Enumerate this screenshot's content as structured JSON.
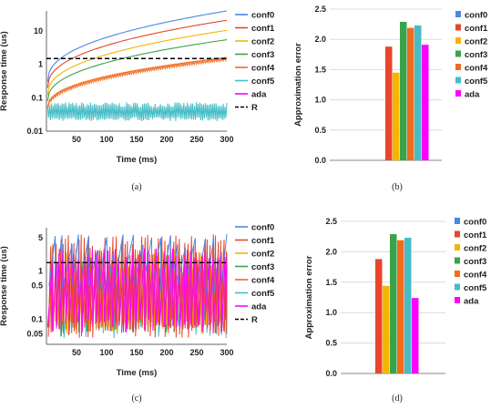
{
  "series_names": [
    "conf0",
    "conf1",
    "conf2",
    "conf3",
    "conf4",
    "conf5",
    "ada",
    "R"
  ],
  "colors": {
    "conf0": "#4a86e8",
    "conf1": "#e8452c",
    "conf2": "#f5b400",
    "conf3": "#3aa34a",
    "conf4": "#f26b1d",
    "conf5": "#46bdc6",
    "ada": "#ff00ff",
    "R": "#000000"
  },
  "chart_data": [
    {
      "panel_label": "(a)",
      "type": "line",
      "xlabel": "Time (ms)",
      "ylabel": "Response time (us)",
      "x_ticks": [
        50,
        100,
        150,
        200,
        250,
        300
      ],
      "y_ticks": [
        "0.01",
        "0.1",
        "1",
        "10"
      ],
      "xlim": [
        0,
        300
      ],
      "ylim": [
        0.01,
        40
      ],
      "log_y": true,
      "legend": [
        "conf0",
        "conf1",
        "conf2",
        "conf3",
        "conf4",
        "conf5",
        "ada",
        "R"
      ],
      "series": [
        {
          "name": "conf0",
          "start": 0.3,
          "end": 40
        },
        {
          "name": "conf1",
          "start": 0.2,
          "end": 21
        },
        {
          "name": "conf2",
          "start": 0.12,
          "end": 10.5
        },
        {
          "name": "conf3",
          "start": 0.08,
          "end": 5.5
        },
        {
          "name": "conf4",
          "start": 0.05,
          "end": 1.6
        },
        {
          "name": "conf5",
          "low": 0.02,
          "high": 0.07
        },
        {
          "name": "R",
          "value": 1.5
        }
      ]
    },
    {
      "panel_label": "(b)",
      "type": "bar",
      "ylabel": "Approximation error",
      "y_ticks": [
        "0.0",
        "0.5",
        "1.0",
        "1.5",
        "2.0",
        "2.5"
      ],
      "ylim": [
        0,
        2.5
      ],
      "categories": [
        "conf0",
        "conf1",
        "conf2",
        "conf3",
        "conf4",
        "conf5",
        "ada"
      ],
      "values": [
        null,
        1.88,
        1.45,
        2.29,
        2.19,
        2.23,
        1.91
      ],
      "legend": [
        "conf0",
        "conf1",
        "conf2",
        "conf3",
        "conf4",
        "conf5",
        "ada"
      ]
    },
    {
      "panel_label": "(c)",
      "type": "line",
      "xlabel": "Time (ms)",
      "ylabel": "Response time (us)",
      "x_ticks": [
        50,
        100,
        150,
        200,
        250,
        300
      ],
      "y_ticks": [
        "0.05",
        "0.1",
        "0.5",
        "1",
        "5"
      ],
      "xlim": [
        0,
        300
      ],
      "ylim": [
        0.03,
        8
      ],
      "log_y": true,
      "legend": [
        "conf0",
        "conf1",
        "conf2",
        "conf3",
        "conf4",
        "conf5",
        "ada",
        "R"
      ],
      "series": [
        {
          "name": "R",
          "value": 1.5
        }
      ]
    },
    {
      "panel_label": "(d)",
      "type": "bar",
      "ylabel": "Approximation error",
      "y_ticks": [
        "0.0",
        "0.5",
        "1.0",
        "1.5",
        "2.0",
        "2.5"
      ],
      "ylim": [
        0,
        2.5
      ],
      "categories": [
        "conf0",
        "conf1",
        "conf2",
        "conf3",
        "conf4",
        "conf5",
        "ada"
      ],
      "values": [
        null,
        1.88,
        1.44,
        2.29,
        2.19,
        2.23,
        1.24
      ],
      "legend": [
        "conf0",
        "conf1",
        "conf2",
        "conf3",
        "conf4",
        "conf5",
        "ada"
      ]
    }
  ]
}
